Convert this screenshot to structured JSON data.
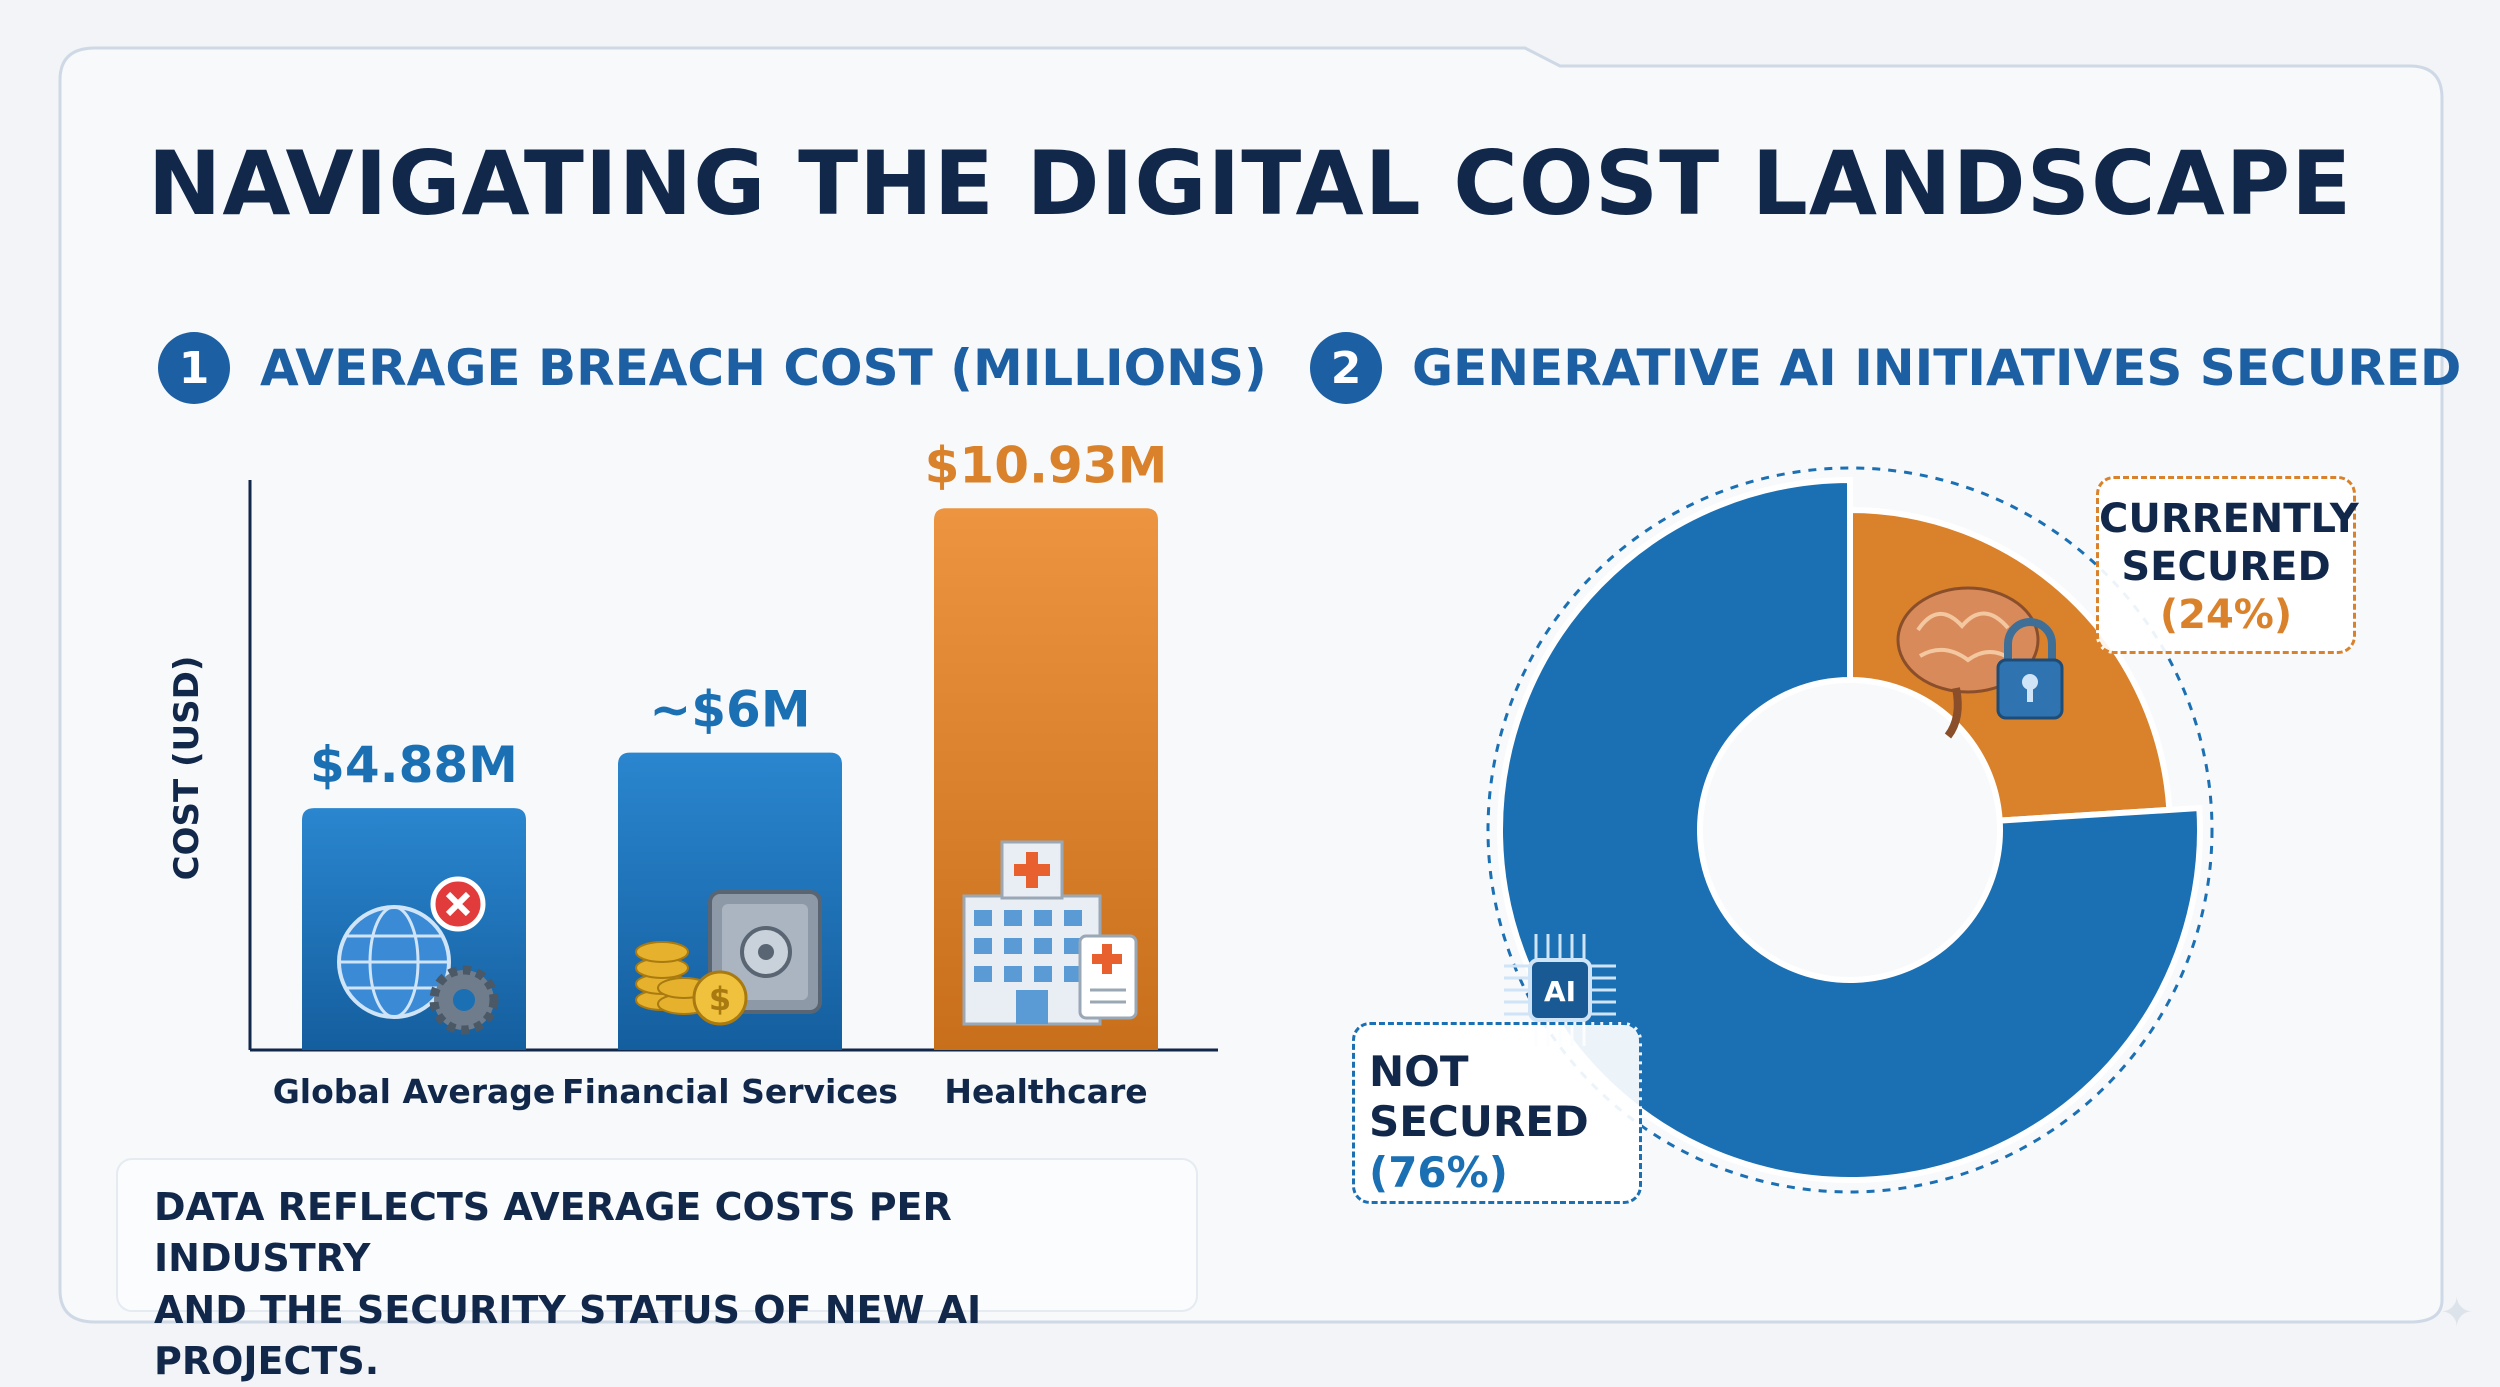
{
  "title": "NAVIGATING THE DIGITAL COST LANDSCAPE",
  "colors": {
    "navy": "#12284a",
    "blue": "#1b6fb3",
    "badge_blue": "#1d5fa3",
    "orange": "#d9822b"
  },
  "section1": {
    "number": "1",
    "title": "AVERAGE BREACH COST (MILLIONS)"
  },
  "section2": {
    "number": "2",
    "title": "GENERATIVE AI INITIATIVES SECURED"
  },
  "chart_data": [
    {
      "type": "bar",
      "title": "AVERAGE BREACH COST (MILLIONS)",
      "ylabel": "COST (USD)",
      "xlabel": "",
      "categories": [
        "Global Average",
        "Financial Services",
        "Healthcare"
      ],
      "values": [
        4.88,
        6,
        10.93
      ],
      "data_labels": [
        "$4.88M",
        "~$6M",
        "$10.93M"
      ],
      "bar_colors": [
        "#1b6fb3",
        "#1b6fb3",
        "#d9822b"
      ],
      "icons": [
        "globe-error-gear-icon",
        "safe-coins-icon",
        "hospital-icon"
      ],
      "ylim": [
        0,
        11.5
      ],
      "grid": false,
      "legend": false
    },
    {
      "type": "pie",
      "title": "GENERATIVE AI INITIATIVES SECURED",
      "donut": true,
      "labels": [
        "CURRENTLY SECURED",
        "NOT SECURED"
      ],
      "values": [
        24,
        76
      ],
      "display_labels": [
        "(24%)",
        "(76%)"
      ],
      "colors": [
        "#d9822b",
        "#1b6fb3"
      ],
      "icons": [
        "brain-lock-icon",
        "ai-chip-icon"
      ],
      "legend": false
    }
  ],
  "callouts": {
    "secured": {
      "name_line1": "CURRENTLY",
      "name_line2": "SECURED",
      "pct": "(24%)"
    },
    "not_secured": {
      "name_line1": "NOT",
      "name_line2": "SECURED",
      "pct": "(76%)"
    }
  },
  "footnote": {
    "line1": "DATA REFLECTS AVERAGE COSTS PER INDUSTRY",
    "line2": "AND THE SECURITY STATUS OF NEW AI PROJECTS."
  }
}
